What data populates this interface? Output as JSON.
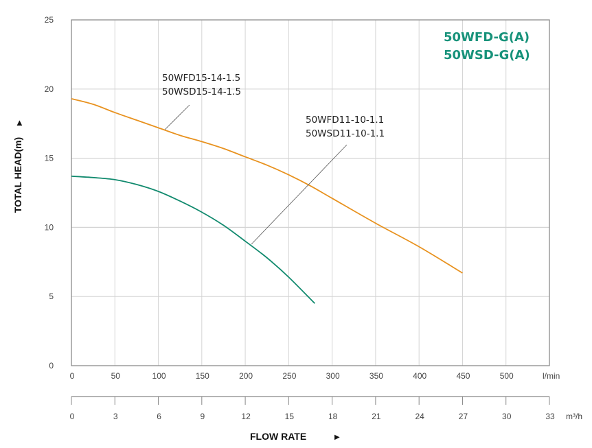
{
  "chart_data": {
    "type": "line",
    "title_lines": [
      "50WFD-G(A)",
      "50WSD-G(A)"
    ],
    "title_color": "#17927a",
    "ylabel": "TOTAL HEAD(m)",
    "xlabel": "FLOW RATE",
    "x_unit": "l/min",
    "x2_unit": "m³/h",
    "xlim": [
      0,
      550
    ],
    "ylim": [
      0,
      25
    ],
    "grid": true,
    "x_ticks": [
      0,
      50,
      100,
      150,
      200,
      250,
      300,
      350,
      400,
      450,
      500
    ],
    "x2_ticks": [
      0,
      3,
      6,
      9,
      12,
      15,
      18,
      21,
      24,
      27,
      30,
      33
    ],
    "y_ticks": [
      0,
      5,
      10,
      15,
      20,
      25
    ],
    "series": [
      {
        "name_lines": [
          "50WFD15-14-1.5",
          "50WSD15-14-1.5"
        ],
        "color": "#e8921f",
        "x": [
          0,
          25,
          50,
          75,
          100,
          125,
          150,
          175,
          200,
          225,
          250,
          275,
          300,
          350,
          400,
          450
        ],
        "y": [
          19.3,
          18.9,
          18.3,
          17.75,
          17.2,
          16.65,
          16.2,
          15.7,
          15.1,
          14.5,
          13.8,
          13.0,
          12.1,
          10.3,
          8.6,
          6.7
        ]
      },
      {
        "name_lines": [
          "50WFD11-10-1.1",
          "50WSD11-10-1.1"
        ],
        "color": "#118a6e",
        "x": [
          0,
          25,
          50,
          75,
          100,
          125,
          150,
          175,
          200,
          225,
          250,
          280
        ],
        "y": [
          13.7,
          13.6,
          13.45,
          13.1,
          12.6,
          11.9,
          11.1,
          10.15,
          9.0,
          7.8,
          6.4,
          4.5
        ]
      }
    ]
  }
}
